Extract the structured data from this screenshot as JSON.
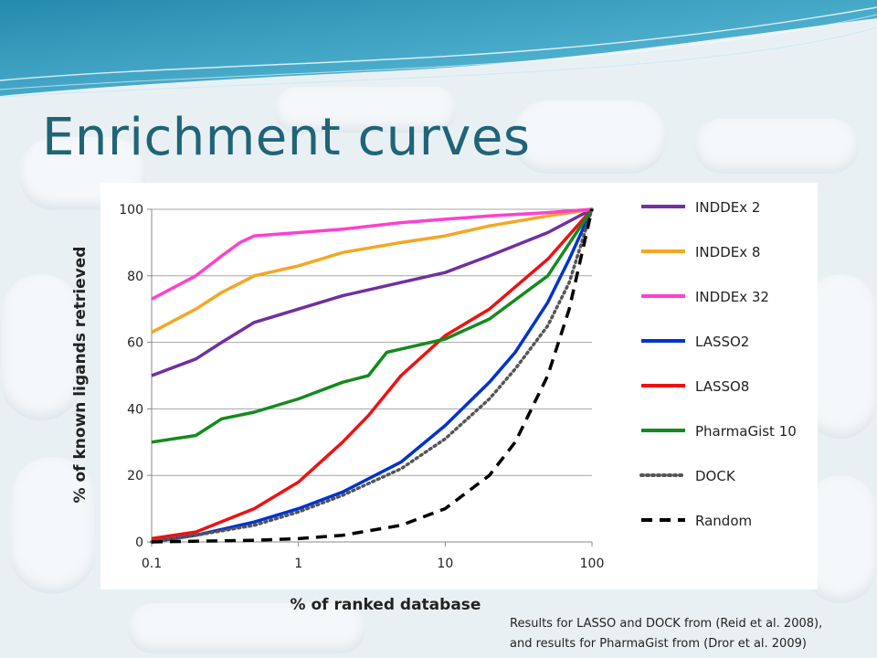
{
  "slide": {
    "title": "Enrichment curves",
    "footnote_line1": "Results for LASSO and DOCK from (Reid et al. 2008),",
    "footnote_line2": "and results for PharmaGist from (Dror et al. 2009)"
  },
  "chart_data": {
    "type": "line",
    "title": "",
    "xlabel": "% of ranked database",
    "ylabel": "% of known ligands retrieved",
    "x_scale": "log",
    "xlim": [
      0.1,
      100
    ],
    "ylim": [
      0,
      100
    ],
    "x_ticks": [
      "0.1",
      "1",
      "10",
      "100"
    ],
    "y_ticks": [
      "0",
      "20",
      "40",
      "60",
      "80",
      "100"
    ],
    "grid": "horizontal",
    "legend_position": "right",
    "series": [
      {
        "name": "INDDEx 2",
        "color": "#7030a0",
        "style": "solid",
        "x": [
          0.1,
          0.2,
          0.3,
          0.5,
          1,
          2,
          5,
          10,
          20,
          50,
          100
        ],
        "y": [
          50,
          55,
          60,
          66,
          70,
          74,
          78,
          81,
          86,
          93,
          100
        ]
      },
      {
        "name": "INDDEx 8",
        "color": "#f5a623",
        "style": "solid",
        "x": [
          0.1,
          0.2,
          0.3,
          0.5,
          1,
          2,
          5,
          10,
          20,
          50,
          100
        ],
        "y": [
          63,
          70,
          75,
          80,
          83,
          87,
          90,
          92,
          95,
          98,
          100
        ]
      },
      {
        "name": "INDDEx 32",
        "color": "#ff3fd0",
        "style": "solid",
        "x": [
          0.1,
          0.2,
          0.3,
          0.4,
          0.5,
          1,
          2,
          5,
          10,
          20,
          50,
          100
        ],
        "y": [
          73,
          80,
          86,
          90,
          92,
          93,
          94,
          96,
          97,
          98,
          99,
          100
        ]
      },
      {
        "name": "LASSO2",
        "color": "#0033cc",
        "style": "solid",
        "x": [
          0.1,
          0.2,
          0.5,
          1,
          2,
          5,
          10,
          20,
          30,
          50,
          70,
          100
        ],
        "y": [
          0,
          2,
          6,
          10,
          15,
          24,
          35,
          48,
          57,
          72,
          85,
          100
        ]
      },
      {
        "name": "LASSO8",
        "color": "#ee1111",
        "style": "solid",
        "x": [
          0.1,
          0.2,
          0.5,
          1,
          2,
          3,
          5,
          10,
          20,
          50,
          100
        ],
        "y": [
          1,
          3,
          10,
          18,
          30,
          38,
          50,
          62,
          70,
          85,
          100
        ]
      },
      {
        "name": "PharmaGist 10",
        "color": "#148a1e",
        "style": "solid",
        "x": [
          0.1,
          0.2,
          0.3,
          0.5,
          1,
          2,
          3,
          4,
          5,
          10,
          20,
          50,
          100
        ],
        "y": [
          30,
          32,
          37,
          39,
          43,
          48,
          50,
          57,
          58,
          61,
          67,
          80,
          100
        ]
      },
      {
        "name": "DOCK",
        "color": "#555555",
        "style": "dotted",
        "x": [
          0.1,
          0.2,
          0.5,
          1,
          2,
          5,
          10,
          20,
          30,
          50,
          70,
          100
        ],
        "y": [
          0,
          2,
          5,
          9,
          14,
          22,
          31,
          43,
          52,
          65,
          78,
          100
        ]
      },
      {
        "name": "Random",
        "color": "#000000",
        "style": "dashed",
        "x": [
          0.1,
          0.5,
          1,
          2,
          5,
          10,
          20,
          30,
          50,
          70,
          100
        ],
        "y": [
          0,
          0.5,
          1,
          2,
          5,
          10,
          20,
          30,
          50,
          70,
          100
        ]
      }
    ]
  }
}
